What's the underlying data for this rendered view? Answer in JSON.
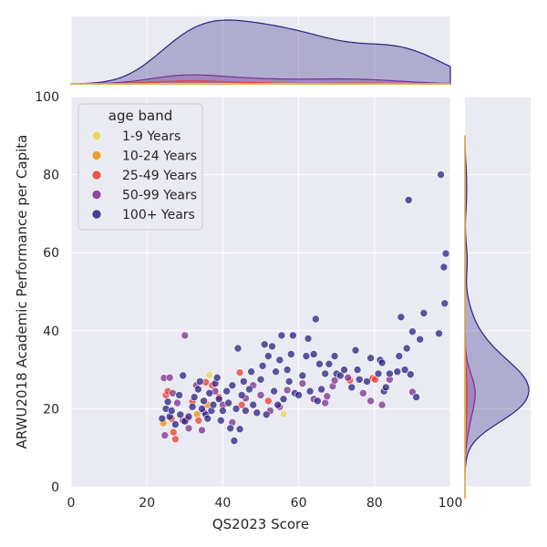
{
  "chart_data": {
    "type": "scatter",
    "title": "",
    "xlabel": "QS2023 Score",
    "ylabel": "ARWU2018 Academic Performance per Capita",
    "xlim": [
      0,
      100
    ],
    "ylim": [
      0,
      100
    ],
    "xticks": [
      "0",
      "20",
      "40",
      "60",
      "80",
      "100"
    ],
    "yticks": [
      "0",
      "20",
      "40",
      "60",
      "80",
      "100"
    ],
    "grid": true,
    "legend": {
      "title": "age band",
      "placement": "top-left"
    },
    "marginals": {
      "top": "kde",
      "right": "kde"
    },
    "series": [
      {
        "name": "1-9 Years",
        "color": "#e8d35a",
        "points": [
          [
            24.5,
            16.8
          ],
          [
            36.5,
            28.7
          ],
          [
            56.0,
            18.7
          ]
        ]
      },
      {
        "name": "10-24 Years",
        "color": "#e8900c",
        "points": [
          [
            24.3,
            16.3
          ],
          [
            33.2,
            18.6
          ],
          [
            36.0,
            21.0
          ]
        ]
      },
      {
        "name": "25-49 Years",
        "color": "#e83c2e",
        "points": [
          [
            25.0,
            23.5
          ],
          [
            25.5,
            24.5
          ],
          [
            26.5,
            17.5
          ],
          [
            27.0,
            14.0
          ],
          [
            27.5,
            12.2
          ],
          [
            30.5,
            17.4
          ],
          [
            32.0,
            21.8
          ],
          [
            33.6,
            17.0
          ],
          [
            35.5,
            26.8
          ],
          [
            37.2,
            26.0
          ],
          [
            39.0,
            23.0
          ],
          [
            44.5,
            29.3
          ],
          [
            45.0,
            21.0
          ],
          [
            52.0,
            22.0
          ],
          [
            73.5,
            27.3
          ],
          [
            79.5,
            27.8
          ],
          [
            80.2,
            27.5
          ]
        ]
      },
      {
        "name": "50-99 Years",
        "color": "#7b2f8e",
        "points": [
          [
            24.5,
            27.9
          ],
          [
            24.7,
            13.2
          ],
          [
            26.0,
            28.0
          ],
          [
            26.8,
            24.0
          ],
          [
            28.0,
            21.5
          ],
          [
            29.5,
            17.0
          ],
          [
            30.0,
            38.8
          ],
          [
            31.0,
            15.0
          ],
          [
            33.0,
            26.0
          ],
          [
            34.5,
            14.5
          ],
          [
            35.0,
            19.2
          ],
          [
            38.0,
            24.5
          ],
          [
            40.0,
            21.0
          ],
          [
            42.5,
            16.5
          ],
          [
            46.0,
            22.7
          ],
          [
            48.0,
            26.0
          ],
          [
            50.0,
            23.5
          ],
          [
            52.5,
            19.5
          ],
          [
            55.0,
            20.5
          ],
          [
            57.0,
            24.8
          ],
          [
            61.0,
            26.5
          ],
          [
            64.0,
            22.5
          ],
          [
            67.0,
            21.5
          ],
          [
            67.5,
            23.2
          ],
          [
            69.0,
            25.8
          ],
          [
            69.5,
            27.3
          ],
          [
            73.0,
            28.0
          ],
          [
            77.0,
            24.0
          ],
          [
            79.0,
            22.0
          ],
          [
            82.0,
            21.0
          ],
          [
            84.0,
            27.5
          ],
          [
            90.0,
            24.3
          ]
        ]
      },
      {
        "name": "100+ Years",
        "color": "#2a1f80",
        "points": [
          [
            24.0,
            17.5
          ],
          [
            25.0,
            20.0
          ],
          [
            25.5,
            21.8
          ],
          [
            26.0,
            18.0
          ],
          [
            26.5,
            19.5
          ],
          [
            27.5,
            16.0
          ],
          [
            28.5,
            23.5
          ],
          [
            28.8,
            18.5
          ],
          [
            29.5,
            28.5
          ],
          [
            30.0,
            16.8
          ],
          [
            31.0,
            18.0
          ],
          [
            32.0,
            20.5
          ],
          [
            32.5,
            23.0
          ],
          [
            33.5,
            25.0
          ],
          [
            34.0,
            27.0
          ],
          [
            34.5,
            20.0
          ],
          [
            35.0,
            22.0
          ],
          [
            35.5,
            18.5
          ],
          [
            36.0,
            17.5
          ],
          [
            36.5,
            24.0
          ],
          [
            37.0,
            19.5
          ],
          [
            37.5,
            21.0
          ],
          [
            38.0,
            26.5
          ],
          [
            38.5,
            28.0
          ],
          [
            39.0,
            22.5
          ],
          [
            39.5,
            17.0
          ],
          [
            40.0,
            19.5
          ],
          [
            41.0,
            24.5
          ],
          [
            41.5,
            21.5
          ],
          [
            42.0,
            15.0
          ],
          [
            42.5,
            26.0
          ],
          [
            43.0,
            11.8
          ],
          [
            43.5,
            20.0
          ],
          [
            44.0,
            35.5
          ],
          [
            44.5,
            14.8
          ],
          [
            45.0,
            23.5
          ],
          [
            45.5,
            27.0
          ],
          [
            46.0,
            19.5
          ],
          [
            47.0,
            25.0
          ],
          [
            47.5,
            29.5
          ],
          [
            48.0,
            21.0
          ],
          [
            49.0,
            19.0
          ],
          [
            50.0,
            27.5
          ],
          [
            50.5,
            31.0
          ],
          [
            51.0,
            36.5
          ],
          [
            51.5,
            18.5
          ],
          [
            52.0,
            33.5
          ],
          [
            53.0,
            36.0
          ],
          [
            53.5,
            24.5
          ],
          [
            54.0,
            29.5
          ],
          [
            54.5,
            21.0
          ],
          [
            55.0,
            32.5
          ],
          [
            55.5,
            38.8
          ],
          [
            56.0,
            22.5
          ],
          [
            57.0,
            30.0
          ],
          [
            57.5,
            27.0
          ],
          [
            58.0,
            34.0
          ],
          [
            58.5,
            38.8
          ],
          [
            59.0,
            24.0
          ],
          [
            60.0,
            23.5
          ],
          [
            61.0,
            28.5
          ],
          [
            62.0,
            33.5
          ],
          [
            62.5,
            38.0
          ],
          [
            63.0,
            24.5
          ],
          [
            64.0,
            34.0
          ],
          [
            64.5,
            43.0
          ],
          [
            65.0,
            22.0
          ],
          [
            65.5,
            31.5
          ],
          [
            66.0,
            25.0
          ],
          [
            67.0,
            29.0
          ],
          [
            68.0,
            31.5
          ],
          [
            69.5,
            33.5
          ],
          [
            70.0,
            29.0
          ],
          [
            71.0,
            28.5
          ],
          [
            72.0,
            30.0
          ],
          [
            74.0,
            25.5
          ],
          [
            75.0,
            35.0
          ],
          [
            75.5,
            30.0
          ],
          [
            76.0,
            27.5
          ],
          [
            78.0,
            27.0
          ],
          [
            79.0,
            33.0
          ],
          [
            81.0,
            29.0
          ],
          [
            81.5,
            32.5
          ],
          [
            82.0,
            31.8
          ],
          [
            82.5,
            24.5
          ],
          [
            83.0,
            25.5
          ],
          [
            84.0,
            29.0
          ],
          [
            86.0,
            29.5
          ],
          [
            86.5,
            33.5
          ],
          [
            87.0,
            43.5
          ],
          [
            88.0,
            30.0
          ],
          [
            88.5,
            35.5
          ],
          [
            89.0,
            73.5
          ],
          [
            89.5,
            28.8
          ],
          [
            90.0,
            39.8
          ],
          [
            91.0,
            23.0
          ],
          [
            92.0,
            37.8
          ],
          [
            93.0,
            44.5
          ],
          [
            97.0,
            39.3
          ],
          [
            97.5,
            80.0
          ],
          [
            98.3,
            56.3
          ],
          [
            98.5,
            47.0
          ],
          [
            98.8,
            59.8
          ]
        ]
      }
    ]
  }
}
